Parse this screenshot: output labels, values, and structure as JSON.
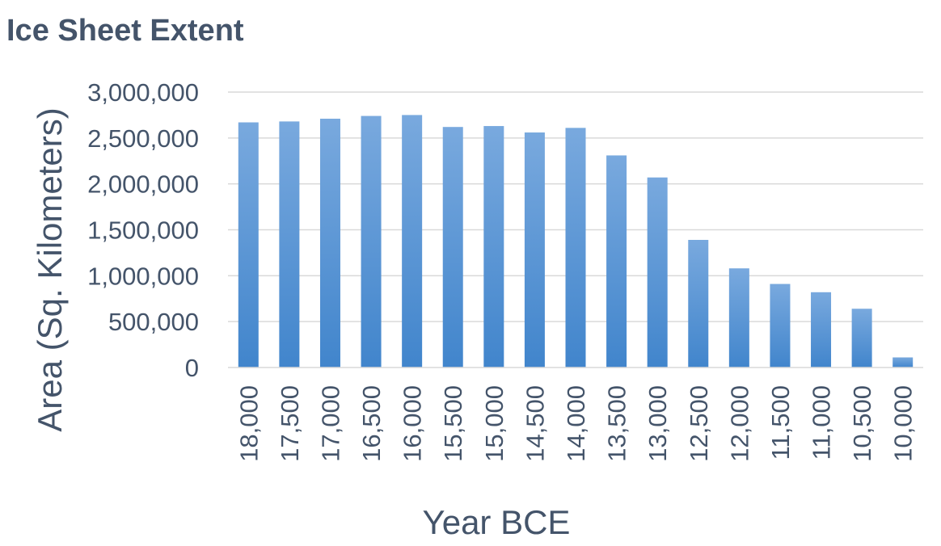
{
  "chart_data": {
    "type": "bar",
    "title": "Ice Sheet Extent",
    "xlabel": "Year BCE",
    "ylabel": "Area (Sq. Kilometers)",
    "categories": [
      "18,000",
      "17,500",
      "17,000",
      "16,500",
      "16,000",
      "15,500",
      "15,000",
      "14,500",
      "14,000",
      "13,500",
      "13,000",
      "12,500",
      "12,000",
      "11,500",
      "11,000",
      "10,500",
      "10,000"
    ],
    "series": [
      {
        "values": [
          2670000,
          2680000,
          2710000,
          2740000,
          2750000,
          2620000,
          2630000,
          2560000,
          2610000,
          2310000,
          2070000,
          1390000,
          1080000,
          910000,
          820000,
          640000,
          110000
        ]
      }
    ],
    "ylim": [
      0,
      3000000
    ],
    "yticks": [
      "0",
      "500,000",
      "1,000,000",
      "1,500,000",
      "2,000,000",
      "2,500,000",
      "3,000,000"
    ],
    "ytick_values": [
      0,
      500000,
      1000000,
      1500000,
      2000000,
      2500000,
      3000000
    ],
    "grid": true,
    "legend": "none",
    "colors": {
      "bar_top": "#79A9DE",
      "bar_bottom": "#4185CC",
      "grid": "#D9D9D9",
      "text": "#44546A"
    }
  }
}
